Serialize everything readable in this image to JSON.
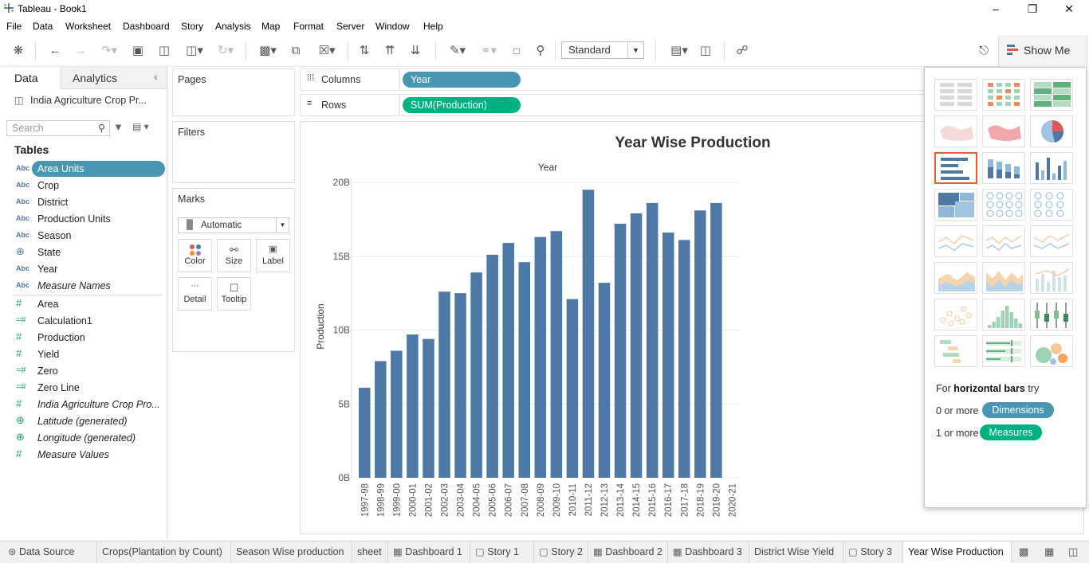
{
  "window": {
    "title": "Tableau - Book1"
  },
  "menu": [
    "File",
    "Data",
    "Worksheet",
    "Dashboard",
    "Story",
    "Analysis",
    "Map",
    "Format",
    "Server",
    "Window",
    "Help"
  ],
  "toolbar": {
    "fit_label": "Standard",
    "show_me_label": "Show Me"
  },
  "data_pane": {
    "tab_data": "Data",
    "tab_analytics": "Analytics",
    "datasource": "India Agriculture Crop Pr...",
    "search_placeholder": "Search",
    "tables_heading": "Tables",
    "dimensions": [
      {
        "type": "Abc",
        "name": "Area Units",
        "selected": true
      },
      {
        "type": "Abc",
        "name": "Crop"
      },
      {
        "type": "Abc",
        "name": "District"
      },
      {
        "type": "Abc",
        "name": "Production Units"
      },
      {
        "type": "Abc",
        "name": "Season"
      },
      {
        "type": "geo",
        "name": "State"
      },
      {
        "type": "Abc",
        "name": "Year"
      },
      {
        "type": "Abc",
        "name": "Measure Names",
        "italic": true
      }
    ],
    "measures": [
      {
        "type": "#",
        "name": "Area"
      },
      {
        "type": "=#",
        "name": "Calculation1"
      },
      {
        "type": "#",
        "name": "Production"
      },
      {
        "type": "#",
        "name": "Yield"
      },
      {
        "type": "=#",
        "name": "Zero"
      },
      {
        "type": "=#",
        "name": "Zero Line"
      },
      {
        "type": "#",
        "name": "India Agriculture Crop Pro...",
        "italic": true
      },
      {
        "type": "geo",
        "name": "Latitude (generated)",
        "italic": true
      },
      {
        "type": "geo",
        "name": "Longitude (generated)",
        "italic": true
      },
      {
        "type": "#",
        "name": "Measure Values",
        "italic": true
      }
    ]
  },
  "shelves": {
    "pages": "Pages",
    "filters": "Filters",
    "marks": "Marks",
    "mark_type": "Automatic",
    "mark_cards": [
      "Color",
      "Size",
      "Label",
      "Detail",
      "Tooltip"
    ],
    "columns_label": "Columns",
    "rows_label": "Rows",
    "columns_pill": "Year",
    "rows_pill": "SUM(Production)"
  },
  "chart_data": {
    "type": "bar",
    "title": "Year Wise Production",
    "column_header": "Year",
    "ylabel": "Production",
    "ylim": [
      0,
      20
    ],
    "yticks": [
      "0B",
      "5B",
      "10B",
      "15B",
      "20B"
    ],
    "grid": true,
    "color": "#4e79a7",
    "categories": [
      "1997-98",
      "1998-99",
      "1999-00",
      "2000-01",
      "2001-02",
      "2002-03",
      "2003-04",
      "2004-05",
      "2005-06",
      "2006-07",
      "2007-08",
      "2008-09",
      "2009-10",
      "2010-11",
      "2011-12",
      "2012-13",
      "2013-14",
      "2014-15",
      "2015-16",
      "2016-17",
      "2017-18",
      "2018-19",
      "2019-20",
      "2020-21"
    ],
    "values": [
      6.1,
      7.9,
      8.6,
      9.7,
      9.4,
      12.6,
      12.5,
      13.9,
      15.1,
      15.9,
      14.6,
      16.3,
      16.7,
      12.1,
      19.5,
      13.2,
      17.2,
      17.9,
      18.6,
      16.6,
      16.1,
      18.1,
      18.6,
      0
    ]
  },
  "show_me": {
    "hint_prefix": "For",
    "hint_bold": "horizontal bars",
    "hint_suffix": "try",
    "dim_prefix": "0 or more",
    "dim_pill": "Dimensions",
    "mea_prefix": "1 or more",
    "mea_pill": "Measures"
  },
  "sheet_tabs": [
    {
      "label": "Data Source",
      "icon": "db"
    },
    {
      "label": "Crops(Plantation by Count)"
    },
    {
      "label": "Season Wise production"
    },
    {
      "label": "sheet"
    },
    {
      "label": "Dashboard 1",
      "icon": "dash"
    },
    {
      "label": "Story 1",
      "icon": "story"
    },
    {
      "label": "Story 2",
      "icon": "story"
    },
    {
      "label": "Dashboard 2",
      "icon": "dash"
    },
    {
      "label": "Dashboard 3",
      "icon": "dash"
    },
    {
      "label": "District Wise Yield"
    },
    {
      "label": "Story 3",
      "icon": "story"
    },
    {
      "label": "Year Wise Production",
      "active": true
    }
  ]
}
